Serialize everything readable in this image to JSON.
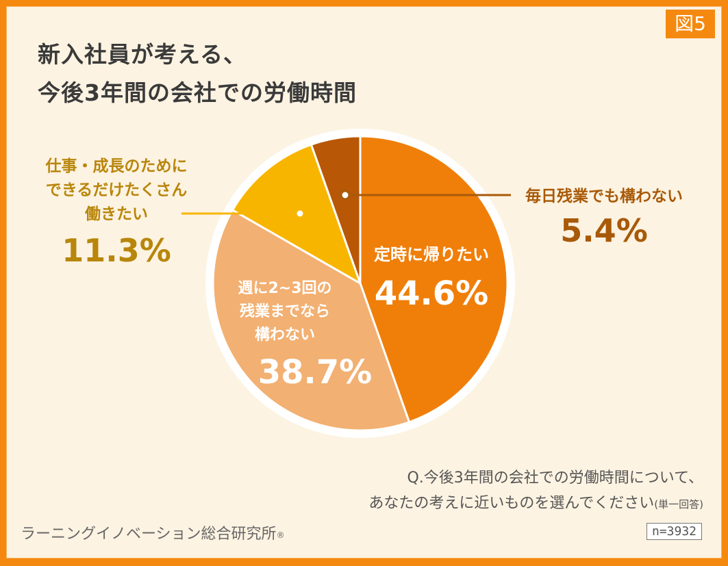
{
  "figure_label": "図5",
  "title_lines": [
    "新入社員が考える、",
    "今後3年間の会社での労働時間"
  ],
  "colors": {
    "frame": "#f5890f",
    "background": "#fdf3e2",
    "slice_teiji": "#f07f0a",
    "slice_shuu": "#f2b072",
    "slice_hataraki": "#f8b500",
    "slice_mainichi": "#b85706",
    "label_dark_gold": "#b8860b",
    "label_brown": "#a85a09"
  },
  "chart_data": {
    "type": "pie",
    "title": "新入社員が考える、今後3年間の会社での労働時間",
    "slices": [
      {
        "label": "定時に帰りたい",
        "value": 44.6,
        "value_text": "44.6%",
        "color": "#f07f0a"
      },
      {
        "label": "週に2~3回の残業までなら構わない",
        "value": 38.7,
        "value_text": "38.7%",
        "color": "#f2b072"
      },
      {
        "label": "仕事・成長のためにできるだけたくさん働きたい",
        "value": 11.3,
        "value_text": "11.3%",
        "color": "#f8b500"
      },
      {
        "label": "毎日残業でも構わない",
        "value": 5.4,
        "value_text": "5.4%",
        "color": "#b85706"
      }
    ]
  },
  "labels": {
    "teiji": {
      "text": "定時に帰りたい",
      "value": "44.6%"
    },
    "shuu": {
      "lines": [
        "週に2~3回の",
        "残業までなら",
        "構わない"
      ],
      "value": "38.7%"
    },
    "hataraki": {
      "lines": [
        "仕事・成長のために",
        "できるだけたくさん",
        "働きたい"
      ],
      "value": "11.3%"
    },
    "mainichi": {
      "text": "毎日残業でも構わない",
      "value": "5.4%"
    }
  },
  "question": {
    "line1": "Q.今後3年間の会社での労働時間について、",
    "line2": "あなたの考えに近いものを選んでください",
    "note": "(単一回答)"
  },
  "company": {
    "name": "ラーニングイノベーション総合研究所",
    "reg": "®"
  },
  "sample_size": "n=3932"
}
